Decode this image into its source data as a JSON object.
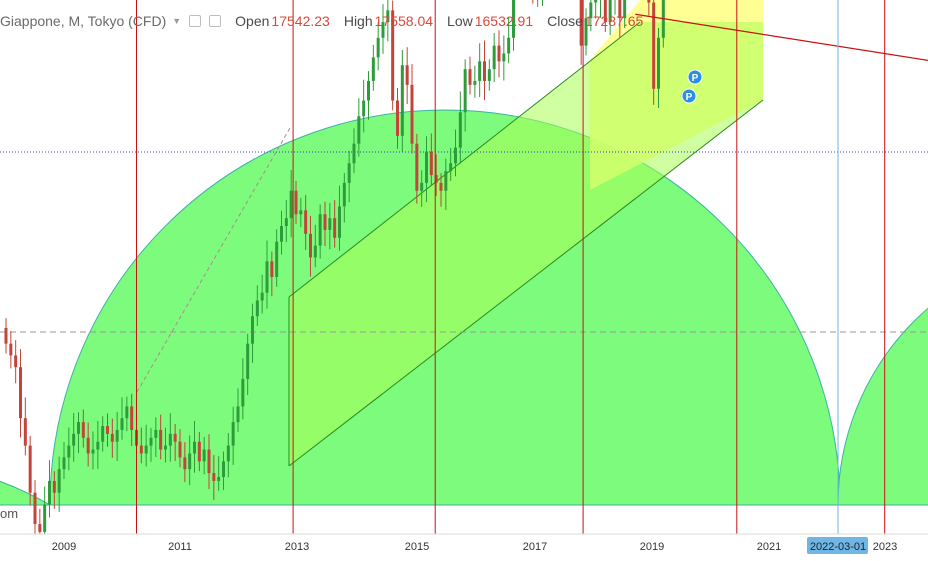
{
  "header": {
    "symbol": "Giappone, M, Tokyo (CFD)",
    "open_label": "Open",
    "open_value": "17542.23",
    "high_label": "High",
    "high_value": "17558.04",
    "low_label": "Low",
    "low_value": "16532.91",
    "close_label": "Close",
    "close_value": "17287.65"
  },
  "left_edge_text": "om",
  "colors": {
    "up": "#2e9c3a",
    "down": "#c4433a",
    "circle_fill": "#7dfb7d",
    "channel_fill": "#ffff88",
    "cycle_line": "#cc1111",
    "today_line": "#6fb6e6",
    "pivot_marker": "#2a8fe0"
  },
  "chart_data": {
    "type": "candlestick",
    "x_axis": {
      "tick_labels": [
        "2009",
        "2011",
        "2013",
        "2015",
        "2017",
        "2019",
        "2021",
        "2022-03-01",
        "2023"
      ],
      "highlighted_label": "2022-03-01"
    },
    "vertical_cycle_lines_year": [
      2010.25,
      2012.95,
      2015.4,
      2017.95,
      2020.6,
      2023.15
    ],
    "today_line_date": "2022-03-01",
    "horizontal_levels": [
      {
        "style": "dotted",
        "color": "#2f3fbf",
        "value": 17287.65
      },
      {
        "style": "dashed",
        "color": "#9a9a9a",
        "value": 12700
      }
    ],
    "pivot_markers": [
      "P",
      "P"
    ],
    "trendline": {
      "start": {
        "year": 2018.85,
        "value": 20800
      },
      "end": {
        "year": 2024.0,
        "value": 19600
      }
    },
    "ohlc_monthly": []
  }
}
